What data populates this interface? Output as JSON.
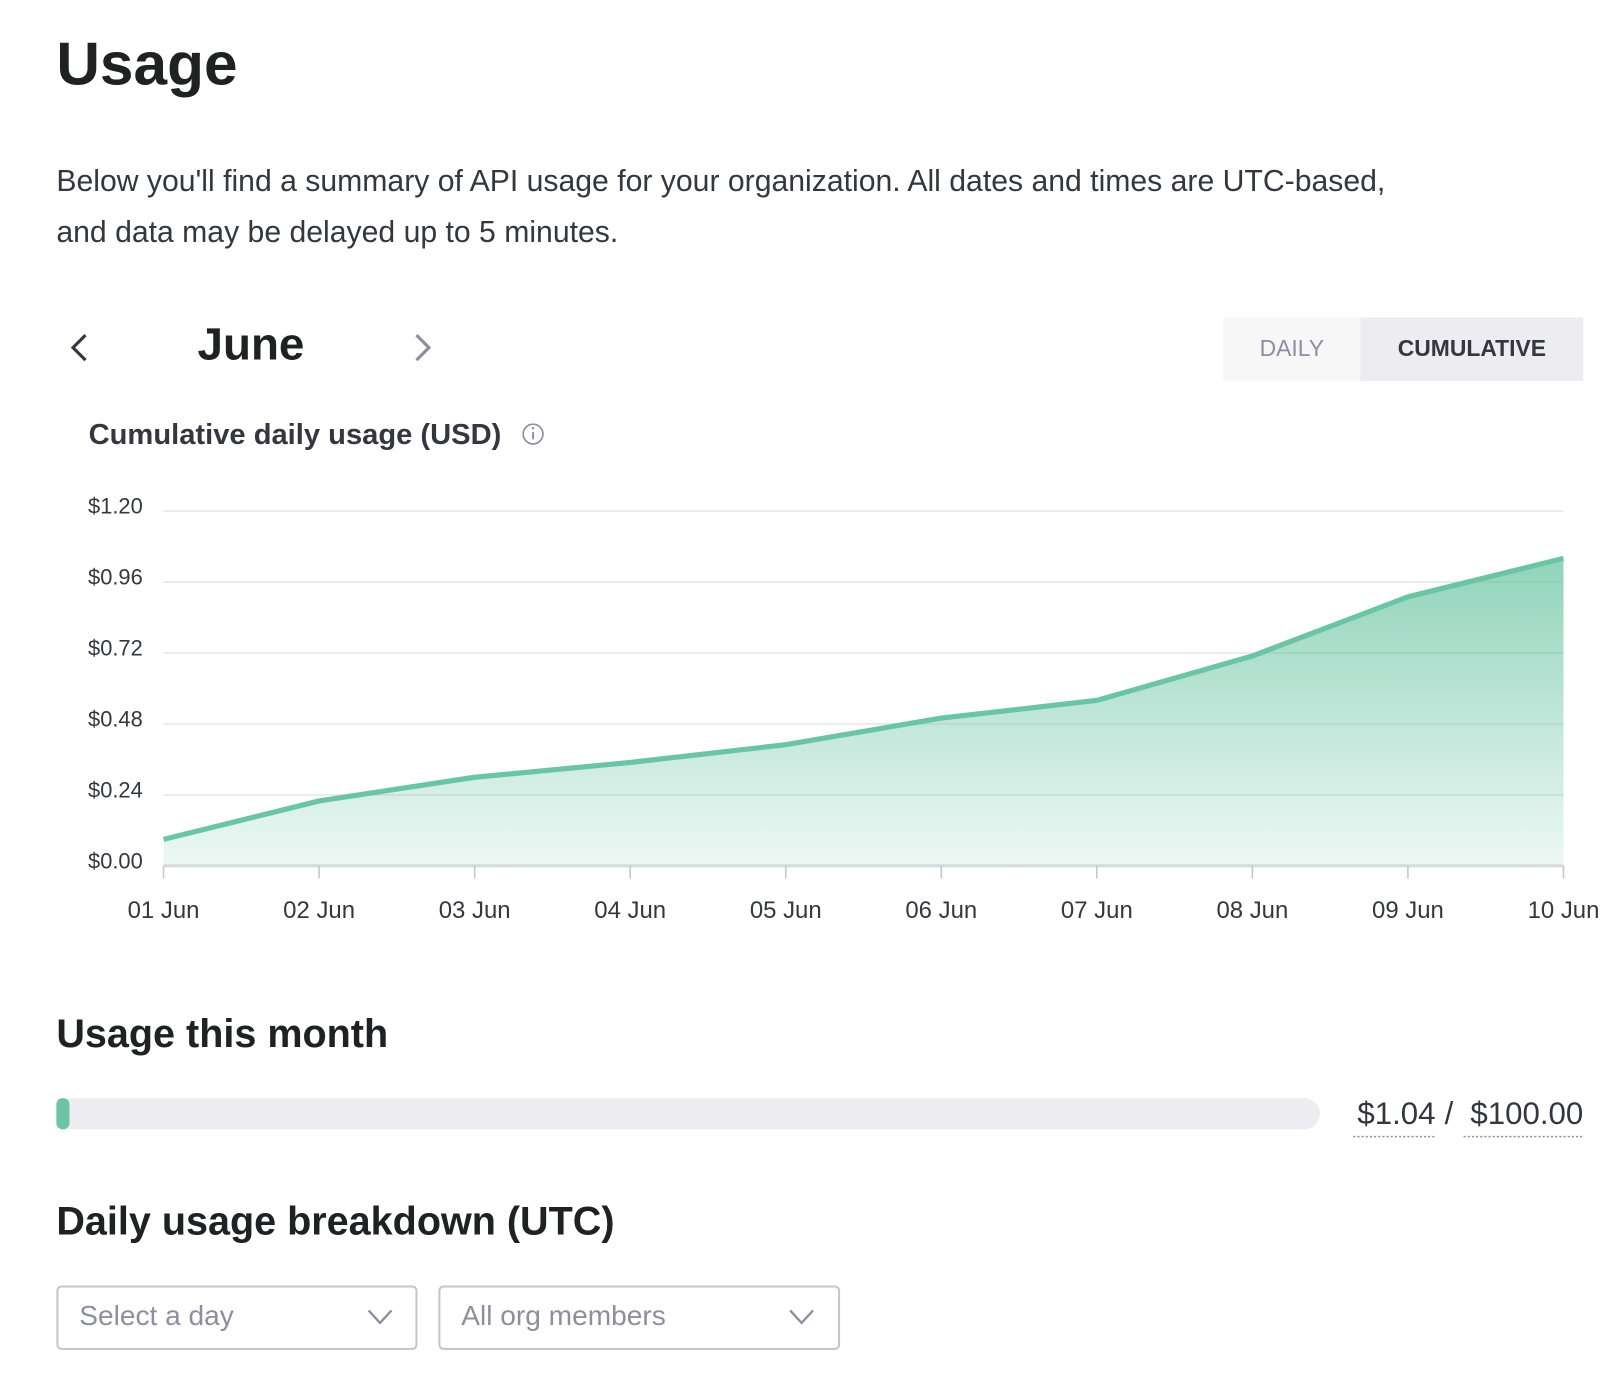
{
  "header": {
    "title": "Usage",
    "description": [
      "Below you'll find a summary of API usage for your organization. All dates and times are UTC-based,",
      "and data may be delayed up to 5 minutes."
    ]
  },
  "month_nav": {
    "month": "June"
  },
  "toggle": {
    "options": [
      "DAILY",
      "CUMULATIVE"
    ],
    "selected": "CUMULATIVE"
  },
  "chart_data": {
    "type": "area",
    "title": "Cumulative daily usage (USD)",
    "categories": [
      "01 Jun",
      "02 Jun",
      "03 Jun",
      "04 Jun",
      "05 Jun",
      "06 Jun",
      "07 Jun",
      "08 Jun",
      "09 Jun",
      "10 Jun"
    ],
    "values": [
      0.09,
      0.22,
      0.3,
      0.35,
      0.41,
      0.5,
      0.56,
      0.71,
      0.91,
      1.04
    ],
    "color": "#6bc5a5",
    "ylim": [
      0,
      1.2
    ],
    "yticks": [
      {
        "value": 0,
        "label": "$0.00"
      },
      {
        "value": 0.24,
        "label": "$0.24"
      },
      {
        "value": 0.48,
        "label": "$0.48"
      },
      {
        "value": 0.72,
        "label": "$0.72"
      },
      {
        "value": 0.96,
        "label": "$0.96"
      },
      {
        "value": 1.2,
        "label": "$1.20"
      }
    ],
    "grid": true
  },
  "usage_month": {
    "title": "Usage this month",
    "used": {
      "value": 1.04,
      "label": "$1.04"
    },
    "separator": "/",
    "limit": {
      "value": 100,
      "label": "$100.00"
    },
    "color": "#6bc5a5"
  },
  "breakdown": {
    "title": "Daily usage breakdown (UTC)",
    "day_select": "Select a day",
    "member_select": "All org members"
  }
}
